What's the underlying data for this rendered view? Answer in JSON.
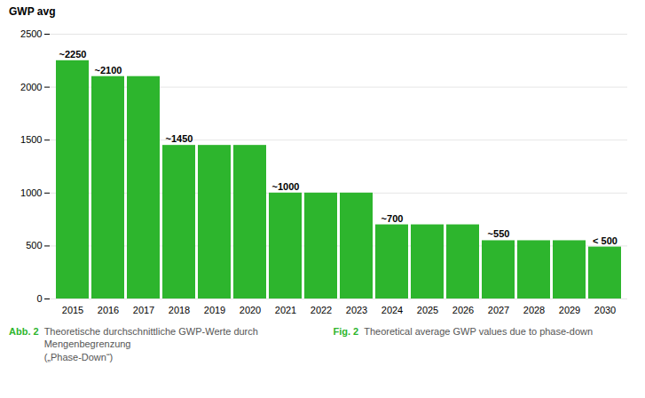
{
  "chart_data": {
    "type": "bar",
    "ylabel": "GWP avg",
    "categories": [
      "2015",
      "2016",
      "2017",
      "2018",
      "2019",
      "2020",
      "2021",
      "2022",
      "2023",
      "2024",
      "2025",
      "2026",
      "2027",
      "2028",
      "2029",
      "2030"
    ],
    "values": [
      2250,
      2100,
      2100,
      1450,
      1450,
      1450,
      1000,
      1000,
      1000,
      700,
      700,
      700,
      550,
      550,
      550,
      490
    ],
    "value_labels": [
      "~2250",
      "~2100",
      null,
      "~1450",
      null,
      null,
      "~1000",
      null,
      null,
      "~700",
      null,
      null,
      "~550",
      null,
      null,
      "< 500"
    ],
    "color": "#2db52d",
    "ylim": [
      0,
      2500
    ],
    "yticks": [
      0,
      500,
      1000,
      1500,
      2000,
      2500
    ],
    "grid": true,
    "caption": [
      {
        "bold": "Abb. 2",
        "text": "Theoretische durchschnittliche GWP-Werte durch Mengenbegrenzung\n(„Phase-Down“)"
      },
      {
        "bold": "Fig. 2",
        "text": "Theoretical average GWP values due to phase-down"
      }
    ]
  }
}
